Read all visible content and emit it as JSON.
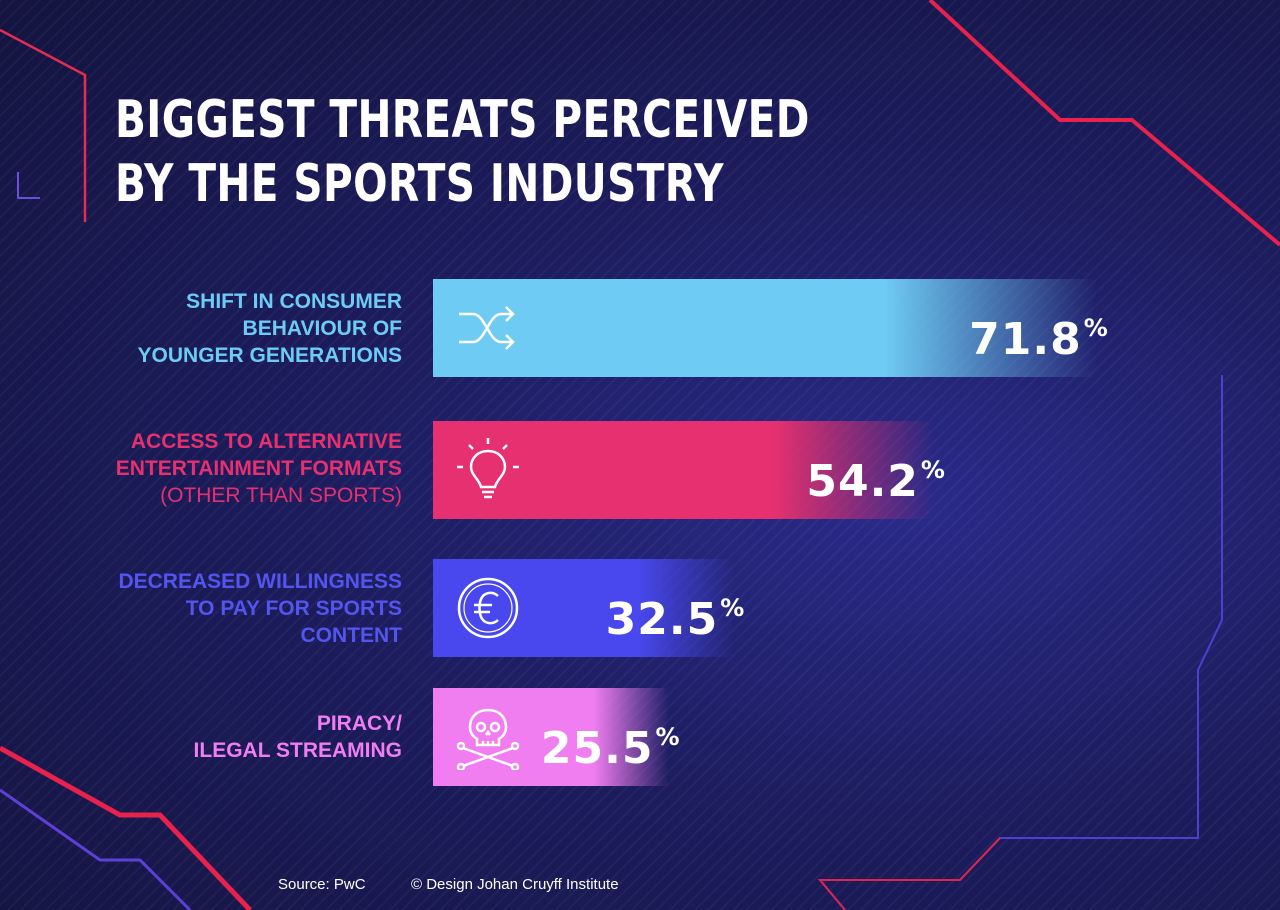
{
  "title_line1": "BIGGEST THREATS PERCEIVED",
  "title_line2": "BY THE SPORTS INDUSTRY",
  "source": "Source: PwC",
  "credit": "© Design Johan Cruyff Institute",
  "chart_data": {
    "type": "bar",
    "orientation": "horizontal",
    "unit": "%",
    "categories": [
      "SHIFT IN CONSUMER BEHAVIOUR OF YOUNGER GENERATIONS",
      "ACCESS TO ALTERNATIVE ENTERTAINMENT FORMATS (OTHER THAN SPORTS)",
      "DECREASED WILLINGNESS TO PAY FOR SPORTS CONTENT",
      "PIRACY/ ILEGAL STREAMING"
    ],
    "values": [
      71.8,
      54.2,
      32.5,
      25.5
    ],
    "value_labels": [
      "71.8",
      "54.2",
      "32.5",
      "25.5"
    ],
    "label_lines": [
      [
        "SHIFT IN CONSUMER",
        "BEHAVIOUR OF",
        "YOUNGER GENERATIONS"
      ],
      [
        "ACCESS TO ALTERNATIVE",
        "ENTERTAINMENT FORMATS",
        "(OTHER THAN SPORTS)"
      ],
      [
        "DECREASED WILLINGNESS",
        "TO PAY FOR SPORTS",
        "CONTENT"
      ],
      [
        "PIRACY/",
        "ILEGAL STREAMING"
      ]
    ],
    "colors": [
      "#6ecbf3",
      "#e6306f",
      "#4848ee",
      "#f07ef0"
    ],
    "icons": [
      "shuffle-icon",
      "lightbulb-icon",
      "euro-icon",
      "skull-crossbones-icon"
    ]
  }
}
